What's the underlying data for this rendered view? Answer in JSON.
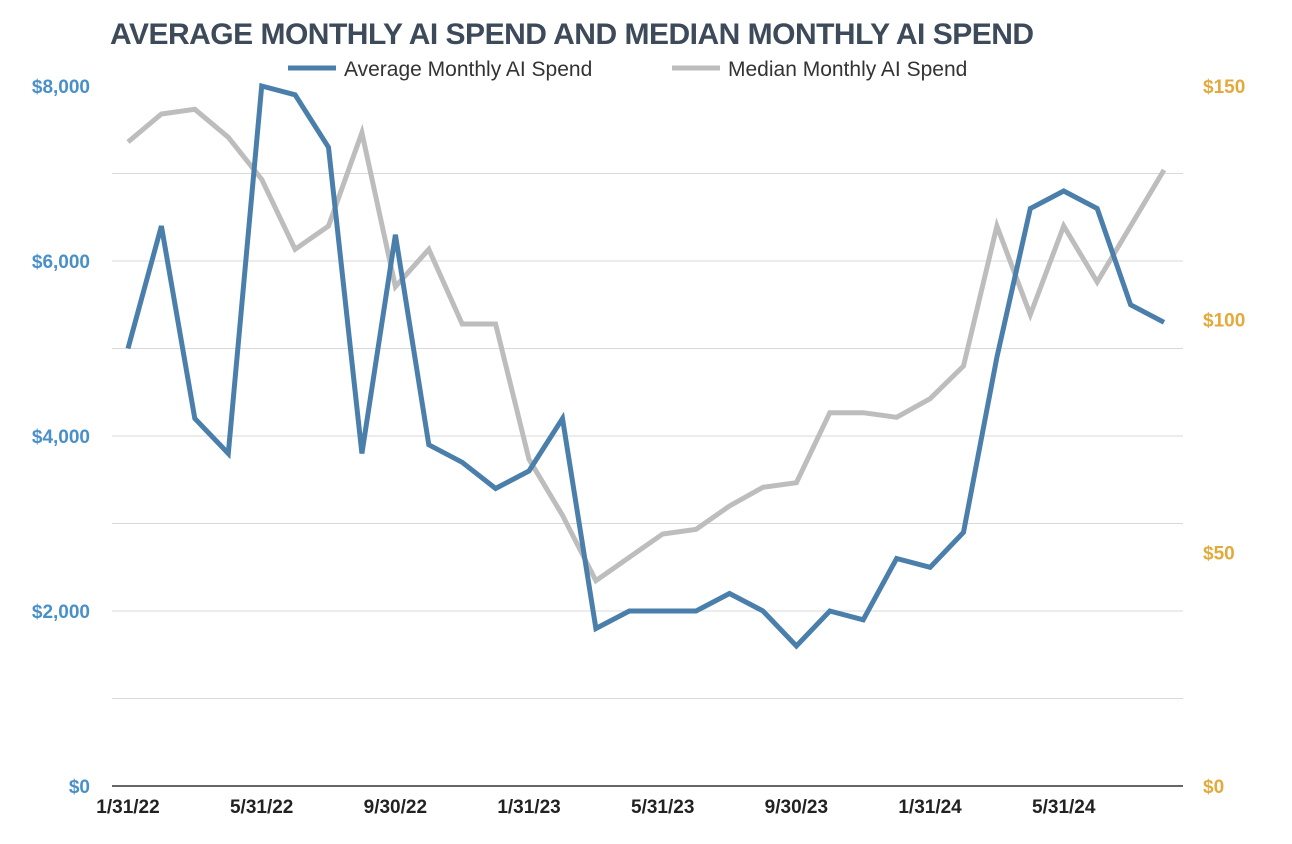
{
  "chart_data": {
    "type": "line",
    "title": "AVERAGE MONTHLY AI SPEND AND MEDIAN MONTHLY AI SPEND",
    "x_tick_labels": [
      "1/31/22",
      "5/31/22",
      "9/30/22",
      "1/31/23",
      "5/31/23",
      "9/30/23",
      "1/31/24",
      "5/31/24"
    ],
    "x": [
      "1/31/22",
      "2/28/22",
      "3/31/22",
      "4/30/22",
      "5/31/22",
      "6/30/22",
      "7/31/22",
      "8/31/22",
      "9/30/22",
      "10/31/22",
      "11/30/22",
      "12/31/22",
      "1/31/23",
      "2/28/23",
      "3/31/23",
      "4/30/23",
      "5/31/23",
      "6/30/23",
      "7/31/23",
      "8/31/23",
      "9/30/23",
      "10/31/23",
      "11/30/23",
      "12/31/23",
      "1/31/24",
      "2/29/24",
      "3/31/24",
      "4/30/24",
      "5/31/24",
      "6/30/24",
      "7/31/24",
      "8/31/24"
    ],
    "y_left": {
      "ylim": [
        0,
        8000
      ],
      "ticks": [
        "$0",
        "$2,000",
        "$4,000",
        "$6,000",
        "$8,000"
      ],
      "tick_values": [
        0,
        2000,
        4000,
        6000,
        8000
      ]
    },
    "y_right": {
      "ylim": [
        0,
        150
      ],
      "ticks": [
        "$0",
        "$50",
        "$100",
        "$150"
      ],
      "tick_values": [
        0,
        50,
        100,
        150
      ]
    },
    "grid": true,
    "legend_position": "top-center",
    "series": [
      {
        "name": "Average Monthly AI Spend",
        "axis": "left",
        "color": "#4a7fab",
        "values": [
          5000,
          6400,
          4200,
          3800,
          8000,
          7900,
          7300,
          3800,
          6300,
          3900,
          3700,
          3400,
          3600,
          4200,
          1800,
          2000,
          2000,
          2000,
          2200,
          2000,
          1600,
          2000,
          1900,
          2600,
          2500,
          2900,
          4900,
          6600,
          6800,
          6600,
          5500,
          5300
        ]
      },
      {
        "name": "Median Monthly AI Spend",
        "axis": "right",
        "color": "#bdbdbd",
        "values": [
          138,
          144,
          145,
          139,
          130,
          115,
          120,
          140,
          107,
          115,
          99,
          99,
          70,
          58,
          44,
          49,
          54,
          55,
          60,
          64,
          65,
          80,
          80,
          79,
          83,
          90,
          120,
          101,
          120,
          108,
          120,
          132
        ]
      }
    ]
  }
}
